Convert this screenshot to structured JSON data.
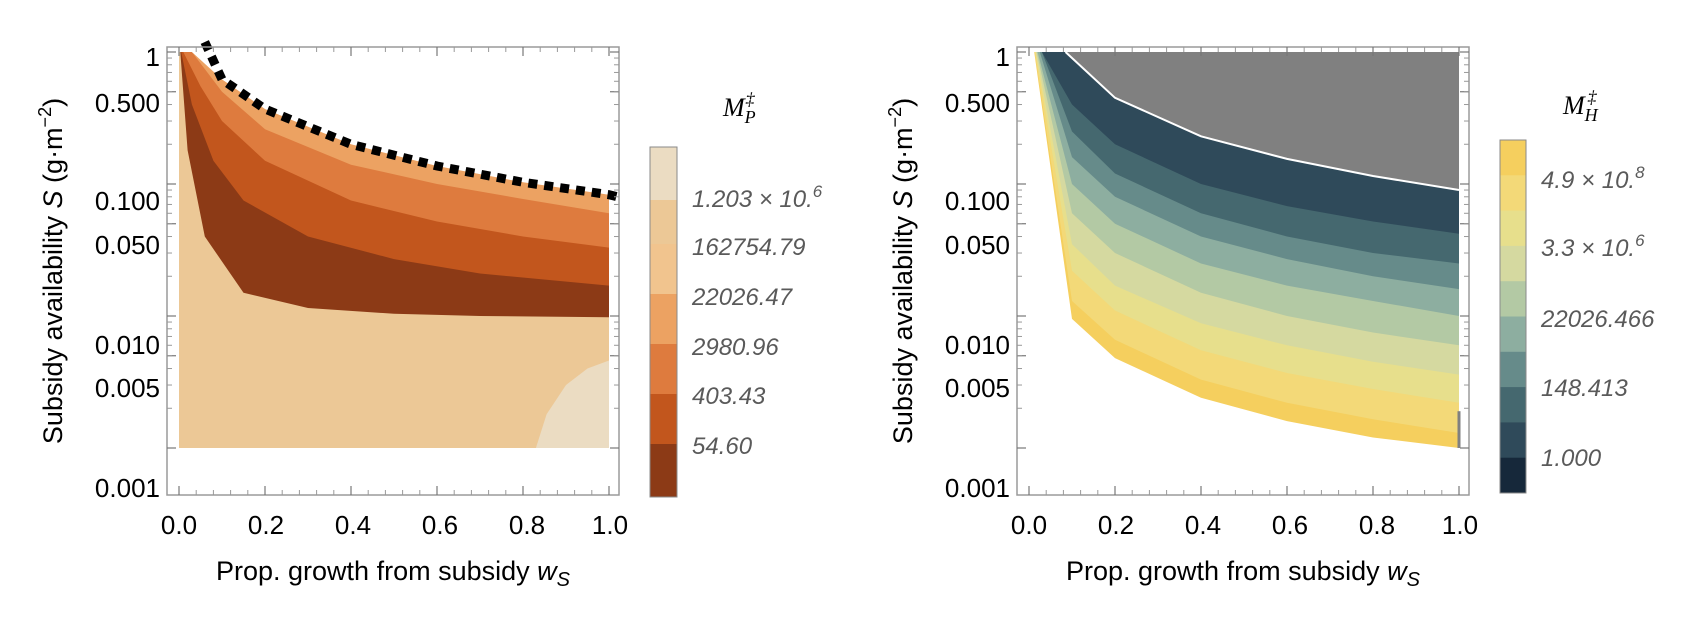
{
  "chart_data": [
    {
      "type": "heatmap",
      "title": "",
      "xlabel": "Prop. growth from subsidy",
      "xlabel_symbol": "w",
      "xlabel_sub": "S",
      "ylabel": "Subsidy availability",
      "ylabel_symbol": "S",
      "ylabel_unit_open": "(g·m",
      "ylabel_unit_exp": "−2",
      "ylabel_unit_close": ")",
      "xlim": [
        0,
        1
      ],
      "ylim": [
        0.001,
        1
      ],
      "yscale": "log",
      "x_ticks": [
        0,
        0.2,
        0.4,
        0.6,
        0.8,
        1.0
      ],
      "x_tick_labels": [
        "0.0",
        "0.2",
        "0.4",
        "0.6",
        "0.8",
        "1.0"
      ],
      "y_ticks": [
        1,
        0.5,
        0.1,
        0.05,
        0.01,
        0.005,
        0.001
      ],
      "y_tick_labels": [
        "1",
        "0.500",
        "0.100",
        "0.050",
        "0.010",
        "0.005",
        "0.001"
      ],
      "legend": {
        "title_symbol": "M",
        "title_sub": "P",
        "title_sup": "‡",
        "placement": "right",
        "labels": [
          "1.203 × 10.",
          "162754.79",
          "22026.47",
          "2980.96",
          "403.43",
          "54.60"
        ],
        "label_sups": [
          "6",
          "",
          "",
          "",
          "",
          ""
        ]
      },
      "colors": [
        "#8c3a16",
        "#c2561d",
        "#de7b3e",
        "#eca262",
        "#f1c48e",
        "#ecc896",
        "#ebdcc2"
      ],
      "annotation": "dashed boundary line along upper edge",
      "contour_boundaries_S_at_w": [
        {
          "w": [
            0.03,
            0.1,
            0.2,
            0.4,
            0.6,
            0.8,
            1.0
          ],
          "S": [
            1,
            0.62,
            0.37,
            0.2,
            0.137,
            0.103,
            0.083
          ]
        },
        {
          "w": [
            0.03,
            0.1,
            0.2,
            0.4,
            0.6,
            0.8,
            1.0
          ],
          "S": [
            1,
            0.5,
            0.26,
            0.14,
            0.1,
            0.077,
            0.06
          ]
        },
        {
          "w": [
            0.01,
            0.05,
            0.1,
            0.2,
            0.4,
            0.6,
            0.8,
            1.0
          ],
          "S": [
            1,
            0.55,
            0.3,
            0.15,
            0.075,
            0.052,
            0.04,
            0.033
          ]
        },
        {
          "w": [
            0.005,
            0.03,
            0.08,
            0.15,
            0.3,
            0.5,
            0.7,
            1.0
          ],
          "S": [
            1,
            0.4,
            0.15,
            0.075,
            0.04,
            0.027,
            0.021,
            0.017
          ]
        },
        {
          "w": [
            0.003,
            0.02,
            0.06,
            0.15,
            0.3,
            0.5,
            0.7,
            1.0
          ],
          "S": [
            1,
            0.18,
            0.04,
            0.015,
            0.0115,
            0.0104,
            0.01,
            0.0098
          ]
        }
      ]
    },
    {
      "type": "heatmap",
      "title": "",
      "xlabel": "Prop. growth from subsidy",
      "xlabel_symbol": "w",
      "xlabel_sub": "S",
      "ylabel": "Subsidy availability",
      "ylabel_symbol": "S",
      "ylabel_unit_open": "(g·m",
      "ylabel_unit_exp": "−2",
      "ylabel_unit_close": ")",
      "xlim": [
        0,
        1
      ],
      "ylim": [
        0.001,
        1
      ],
      "yscale": "log",
      "x_ticks": [
        0,
        0.2,
        0.4,
        0.6,
        0.8,
        1.0
      ],
      "x_tick_labels": [
        "0.0",
        "0.2",
        "0.4",
        "0.6",
        "0.8",
        "1.0"
      ],
      "y_ticks": [
        1,
        0.5,
        0.1,
        0.05,
        0.01,
        0.005,
        0.001
      ],
      "y_tick_labels": [
        "1",
        "0.500",
        "0.100",
        "0.050",
        "0.010",
        "0.005",
        "0.001"
      ],
      "legend": {
        "title_symbol": "M",
        "title_sub": "H",
        "title_sup": "‡",
        "placement": "right",
        "labels": [
          "4.9 × 10.",
          "3.3 × 10.",
          "22026.466",
          "148.413",
          "1.000"
        ],
        "label_sups": [
          "8",
          "6",
          "",
          "",
          ""
        ]
      },
      "colors": [
        "#16283a",
        "#2f4a5a",
        "#45686f",
        "#668b8a",
        "#8daea0",
        "#b3c9a4",
        "#d5d9a0",
        "#e7df8c",
        "#f3d978",
        "#f5cf5e"
      ],
      "gray_region_color": "#808080",
      "boundaries_S_at_w": [
        {
          "w": [
            0.085,
            0.2,
            0.4,
            0.6,
            0.8,
            1.0
          ],
          "S": [
            1,
            0.45,
            0.23,
            0.155,
            0.115,
            0.09
          ]
        },
        {
          "w": [
            0.03,
            0.1,
            0.2,
            0.4,
            0.6,
            0.8,
            1.0
          ],
          "S": [
            1,
            0.4,
            0.2,
            0.1,
            0.068,
            0.052,
            0.042
          ]
        },
        {
          "w": [
            0.03,
            0.1,
            0.2,
            0.4,
            0.6,
            0.8,
            1.0
          ],
          "S": [
            1,
            0.25,
            0.12,
            0.06,
            0.04,
            0.03,
            0.025
          ]
        },
        {
          "w": [
            0.025,
            0.1,
            0.2,
            0.4,
            0.6,
            0.8,
            1.0
          ],
          "S": [
            1,
            0.16,
            0.08,
            0.04,
            0.027,
            0.02,
            0.016
          ]
        },
        {
          "w": [
            0.02,
            0.1,
            0.2,
            0.4,
            0.6,
            0.8,
            1.0
          ],
          "S": [
            1,
            0.1,
            0.05,
            0.025,
            0.017,
            0.013,
            0.01
          ]
        },
        {
          "w": [
            0.018,
            0.1,
            0.2,
            0.4,
            0.6,
            0.8,
            1.0
          ],
          "S": [
            1,
            0.06,
            0.03,
            0.015,
            0.01,
            0.0075,
            0.006
          ]
        },
        {
          "w": [
            0.016,
            0.1,
            0.2,
            0.4,
            0.6,
            0.8,
            1.0
          ],
          "S": [
            1,
            0.035,
            0.017,
            0.0088,
            0.006,
            0.0045,
            0.0036
          ]
        },
        {
          "w": [
            0.015,
            0.1,
            0.2,
            0.4,
            0.6,
            0.8,
            1.0
          ],
          "S": [
            1,
            0.022,
            0.011,
            0.0055,
            0.0037,
            0.0028,
            0.0022
          ]
        },
        {
          "w": [
            0.013,
            0.1,
            0.2,
            0.4,
            0.6,
            0.8,
            1.0
          ],
          "S": [
            1,
            0.013,
            0.0066,
            0.0033,
            0.0022,
            0.00165,
            0.0013
          ]
        },
        {
          "w": [
            0.012,
            0.1,
            0.2,
            0.4,
            0.6,
            0.8,
            1.0
          ],
          "S": [
            1,
            0.0095,
            0.0048,
            0.0024,
            0.0016,
            0.0012,
            0.001
          ]
        }
      ]
    }
  ]
}
